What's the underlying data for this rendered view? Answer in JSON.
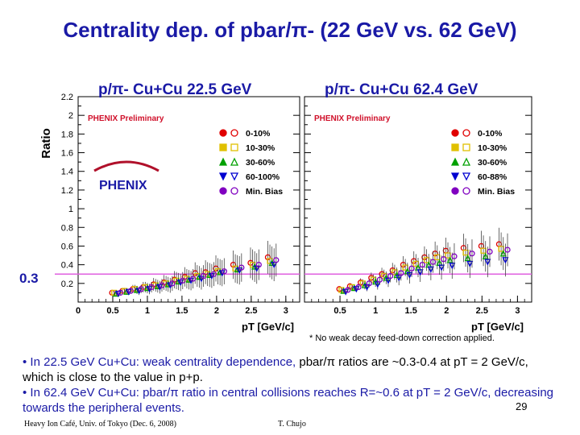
{
  "slide": {
    "title": "Centrality dep. of pbar/π- (22 GeV vs. 62 GeV)",
    "reference_label": "0.3",
    "footnote": "* No weak decay feed-down correction applied.",
    "bullet1_a": "• In 22.5 GeV Cu+Cu: weak centrality dependence, ",
    "bullet1_b": "pbar/π ratios are ~0.3-0.4 at pT = 2 GeV/c, which is close to the value in p+p.",
    "bullet2": "• In 62.4 GeV Cu+Cu: pbar/π ratio in central collisions reaches R=~0.6 at pT = 2 GeV/c, decreasing towards the peripheral events.",
    "footer_left": "Heavy Ion Café, Univ. of Tokyo (Dec. 6, 2008)",
    "footer_right": "T. Chujo",
    "page_number": "29"
  },
  "colors": {
    "title": "#1a1aa6",
    "preliminary": "#d0102a",
    "reference_line": "#e060e0",
    "series": [
      "#e00000",
      "#e0c000",
      "#00a000",
      "#0000d0",
      "#8000c0"
    ]
  },
  "chart_data": [
    {
      "type": "scatter",
      "title": "p/π- Cu+Cu 22.5 GeV",
      "tag": "PHENIX Preliminary",
      "logo": "PHENIX",
      "ylabel": "Ratio",
      "xlabel": "",
      "xlim": [
        0,
        3.2
      ],
      "ylim": [
        0,
        2.2
      ],
      "xticks": [
        "0",
        "0.5",
        "1",
        "1.5",
        "2",
        "2.5",
        "3"
      ],
      "yticks": [
        "0.2",
        "0.4",
        "0.6",
        "0.8",
        "1",
        "1.2",
        "1.4",
        "1.6",
        "1.8",
        "2",
        "2.2"
      ],
      "reference_y": 0.3,
      "legend": [
        "0-10%",
        "10-30%",
        "30-60%",
        "60-100%",
        "Min. Bias"
      ],
      "x": [
        0.55,
        0.7,
        0.85,
        1.0,
        1.15,
        1.3,
        1.45,
        1.6,
        1.75,
        1.9,
        2.05,
        2.3,
        2.55,
        2.8
      ],
      "series": [
        {
          "name": "0-10%",
          "values": [
            0.1,
            0.12,
            0.14,
            0.16,
            0.19,
            0.21,
            0.24,
            0.27,
            0.31,
            0.32,
            0.36,
            0.4,
            0.42,
            0.48
          ]
        },
        {
          "name": "10-30%",
          "values": [
            0.1,
            0.12,
            0.14,
            0.16,
            0.18,
            0.2,
            0.23,
            0.25,
            0.28,
            0.3,
            0.33,
            0.36,
            0.4,
            0.44
          ]
        },
        {
          "name": "30-60%",
          "values": [
            0.09,
            0.11,
            0.13,
            0.15,
            0.17,
            0.19,
            0.22,
            0.24,
            0.27,
            0.29,
            0.32,
            0.35,
            0.38,
            0.42
          ]
        },
        {
          "name": "60-100%",
          "values": [
            0.09,
            0.11,
            0.12,
            0.14,
            0.16,
            0.18,
            0.21,
            0.23,
            0.25,
            0.28,
            0.31,
            0.34,
            0.36,
            0.4
          ]
        },
        {
          "name": "Min. Bias",
          "values": [
            0.1,
            0.12,
            0.14,
            0.16,
            0.18,
            0.2,
            0.23,
            0.25,
            0.28,
            0.3,
            0.33,
            0.37,
            0.4,
            0.45
          ]
        }
      ]
    },
    {
      "type": "scatter",
      "title": "p/π- Cu+Cu 62.4 GeV",
      "tag": "PHENIX Preliminary",
      "ylabel": "",
      "xlabel": "pT [GeV/c]",
      "xlim": [
        0,
        3.2
      ],
      "ylim": [
        0,
        2.2
      ],
      "xticks": [
        "0.5",
        "1",
        "1.5",
        "2",
        "2.5",
        "3"
      ],
      "legend": [
        "0-10%",
        "10-30%",
        "30-60%",
        "60-88%",
        "Min. Bias"
      ],
      "x": [
        0.55,
        0.7,
        0.85,
        1.0,
        1.15,
        1.3,
        1.45,
        1.6,
        1.75,
        1.9,
        2.05,
        2.3,
        2.55,
        2.8
      ],
      "series": [
        {
          "name": "0-10%",
          "values": [
            0.14,
            0.17,
            0.21,
            0.26,
            0.3,
            0.34,
            0.4,
            0.44,
            0.48,
            0.52,
            0.55,
            0.58,
            0.6,
            0.62
          ]
        },
        {
          "name": "10-30%",
          "values": [
            0.13,
            0.16,
            0.2,
            0.24,
            0.28,
            0.32,
            0.37,
            0.41,
            0.45,
            0.48,
            0.5,
            0.53,
            0.55,
            0.57
          ]
        },
        {
          "name": "30-60%",
          "values": [
            0.12,
            0.15,
            0.18,
            0.22,
            0.26,
            0.29,
            0.33,
            0.37,
            0.4,
            0.42,
            0.45,
            0.47,
            0.49,
            0.52
          ]
        },
        {
          "name": "60-88%",
          "values": [
            0.11,
            0.14,
            0.16,
            0.19,
            0.23,
            0.26,
            0.29,
            0.32,
            0.35,
            0.37,
            0.39,
            0.41,
            0.43,
            0.45
          ]
        },
        {
          "name": "Min. Bias",
          "values": [
            0.13,
            0.16,
            0.2,
            0.24,
            0.28,
            0.31,
            0.36,
            0.4,
            0.43,
            0.46,
            0.49,
            0.52,
            0.54,
            0.56
          ]
        }
      ]
    }
  ]
}
